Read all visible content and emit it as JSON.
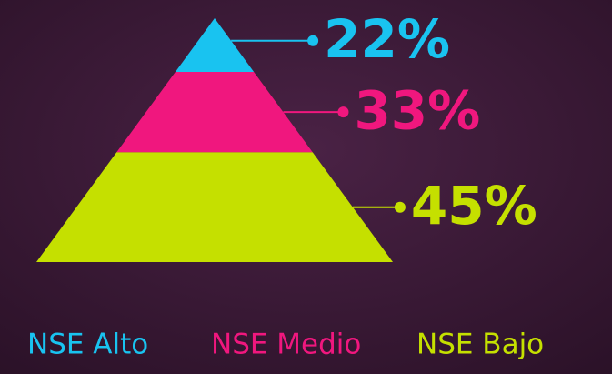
{
  "chart_data": {
    "type": "pyramid",
    "categories": [
      "NSE Alto",
      "NSE Medio",
      "NSE Bajo"
    ],
    "values": [
      22,
      33,
      45
    ],
    "value_labels": [
      "22%",
      "33%",
      "45%"
    ],
    "colors": [
      "#19c3f0",
      "#f0177e",
      "#c5e000"
    ]
  }
}
